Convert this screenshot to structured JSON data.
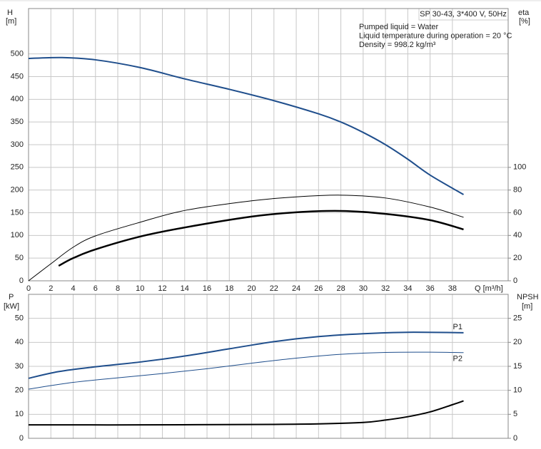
{
  "chart_data": [
    {
      "type": "line",
      "title": "SP 30-43, 3*400 V, 50Hz",
      "notes": [
        "Pumped liquid = Water",
        "Liquid temperature during operation = 20 °C",
        "Density = 998.2 kg/m³"
      ],
      "y_label": "H",
      "y_unit": "[m]",
      "y2_label": "eta",
      "y2_unit": "[%]",
      "x_label": "Q [m³/h]",
      "xlim": [
        0,
        43
      ],
      "xticks": [
        0,
        2,
        4,
        6,
        8,
        10,
        12,
        14,
        16,
        18,
        20,
        22,
        24,
        26,
        28,
        30,
        32,
        34,
        36,
        38
      ],
      "ylim": [
        0,
        600
      ],
      "yticks": [
        0,
        50,
        100,
        150,
        200,
        250,
        300,
        350,
        400,
        450,
        500
      ],
      "y2lim": [
        0,
        240
      ],
      "y2ticks": [
        0,
        20,
        40,
        60,
        80,
        100
      ],
      "grid": true,
      "series": [
        {
          "color": "#1f4e8c",
          "width": 2,
          "x": [
            0,
            3,
            6,
            10,
            14,
            18,
            22,
            26,
            28,
            30,
            32,
            34,
            36,
            39
          ],
          "values": [
            490,
            492,
            487,
            470,
            445,
            422,
            397,
            368,
            350,
            327,
            300,
            268,
            233,
            190
          ]
        },
        {
          "color": "#000000",
          "width": 1,
          "axis": "y2",
          "x": [
            0,
            2,
            4,
            6,
            10,
            14,
            20,
            24,
            28,
            32,
            36,
            39
          ],
          "values": [
            0,
            15,
            29.6,
            39.6,
            51.6,
            62,
            70.5,
            74,
            75.5,
            73,
            65,
            56
          ]
        },
        {
          "color": "#000000",
          "width": 2.5,
          "axis": "y2",
          "x": [
            2.7,
            4,
            6,
            10,
            14,
            20,
            24,
            28,
            32,
            36,
            39
          ],
          "values": [
            13.2,
            20,
            27.7,
            39,
            47,
            56.6,
            60.4,
            61.6,
            59,
            53.5,
            45.3
          ]
        }
      ]
    },
    {
      "type": "line",
      "y_label": "P",
      "y_unit": "[kW]",
      "y2_label": "NPSH",
      "y2_unit": "[m]",
      "xlim": [
        0,
        43
      ],
      "xticks": [
        0,
        2,
        4,
        6,
        8,
        10,
        12,
        14,
        16,
        18,
        20,
        22,
        24,
        26,
        28,
        30,
        32,
        34,
        36,
        38
      ],
      "ylim": [
        0,
        60
      ],
      "yticks": [
        0,
        10,
        20,
        30,
        40,
        50
      ],
      "y2lim": [
        0,
        30
      ],
      "y2ticks": [
        0,
        5,
        10,
        15,
        20,
        25
      ],
      "grid": true,
      "series": [
        {
          "name": "P1",
          "color": "#1f4e8c",
          "width": 2,
          "x": [
            0,
            2.7,
            6,
            10,
            14,
            18,
            22,
            26,
            30,
            34,
            39
          ],
          "values": [
            25,
            27.8,
            29.8,
            31.8,
            34.3,
            37.3,
            40.3,
            42.4,
            43.6,
            44.2,
            44
          ]
        },
        {
          "name": "P2",
          "color": "#1f4e8c",
          "width": 1,
          "x": [
            0,
            4,
            8,
            12,
            16,
            20,
            24,
            28,
            32,
            36,
            39
          ],
          "values": [
            20.5,
            23.3,
            25.2,
            27,
            29,
            31.3,
            33.4,
            35,
            35.8,
            35.9,
            35.7
          ]
        },
        {
          "color": "#000000",
          "width": 2,
          "axis": "y2",
          "x": [
            0,
            10,
            22,
            26,
            30,
            32,
            34,
            36,
            38,
            39
          ],
          "values": [
            2.8,
            2.8,
            2.9,
            3,
            3.3,
            3.8,
            4.5,
            5.5,
            7,
            7.8
          ]
        }
      ]
    }
  ]
}
